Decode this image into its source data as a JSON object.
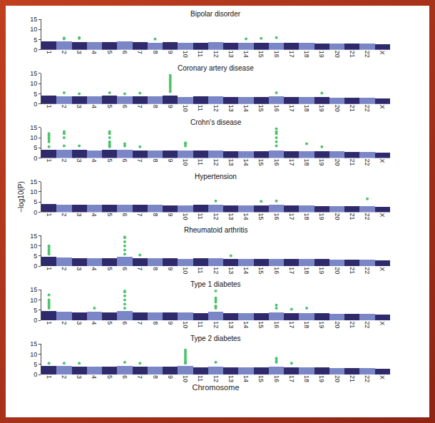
{
  "chart_data": [
    {
      "type": "bar",
      "title": "Bipolar disorder",
      "categories": [
        "1",
        "2",
        "3",
        "4",
        "5",
        "6",
        "7",
        "8",
        "9",
        "10",
        "11",
        "12",
        "13",
        "14",
        "15",
        "16",
        "17",
        "18",
        "19",
        "20",
        "21",
        "22",
        "X"
      ],
      "ylim": [
        0,
        15
      ],
      "yticks": [
        0,
        5,
        10,
        15
      ],
      "grid": false,
      "series": [
        {
          "type": "bar",
          "values": [
            4.0,
            4.2,
            3.8,
            3.7,
            3.9,
            4.0,
            3.8,
            3.6,
            3.7,
            3.5,
            3.6,
            3.7,
            3.4,
            3.5,
            3.6,
            3.6,
            3.5,
            3.3,
            3.2,
            3.2,
            3.0,
            3.0,
            2.8
          ],
          "colors": [
            "#2e2a6b",
            "#7a86c6",
            "#2e2a6b",
            "#7a86c6",
            "#2e2a6b",
            "#7a86c6",
            "#2e2a6b",
            "#7a86c6",
            "#2e2a6b",
            "#7a86c6",
            "#2e2a6b",
            "#7a86c6",
            "#2e2a6b",
            "#7a86c6",
            "#2e2a6b",
            "#7a86c6",
            "#2e2a6b",
            "#7a86c6",
            "#2e2a6b",
            "#7a86c6",
            "#2e2a6b",
            "#7a86c6",
            "#2e2a6b"
          ]
        },
        {
          "type": "scatter",
          "color": "#4cc36a",
          "x": [
            "2",
            "2",
            "3",
            "3",
            "8",
            "14",
            "15",
            "16"
          ],
          "values": [
            5.8,
            5.4,
            5.6,
            6.0,
            5.3,
            5.4,
            5.6,
            6.0
          ]
        }
      ]
    },
    {
      "type": "bar",
      "title": "Coronary artery disease",
      "categories": [
        "1",
        "2",
        "3",
        "4",
        "5",
        "6",
        "7",
        "8",
        "9",
        "10",
        "11",
        "12",
        "13",
        "14",
        "15",
        "16",
        "17",
        "18",
        "19",
        "20",
        "21",
        "22",
        "X"
      ],
      "ylim": [
        0,
        15
      ],
      "yticks": [
        0,
        5,
        10,
        15
      ],
      "grid": false,
      "series": [
        {
          "type": "bar",
          "values": [
            4.2,
            3.9,
            3.8,
            3.9,
            4.0,
            3.8,
            3.9,
            3.7,
            4.3,
            3.6,
            3.7,
            3.8,
            3.5,
            3.6,
            3.5,
            3.7,
            3.4,
            3.3,
            3.3,
            3.2,
            3.0,
            3.1,
            2.7
          ],
          "colors": [
            "#2e2a6b",
            "#7a86c6",
            "#2e2a6b",
            "#7a86c6",
            "#2e2a6b",
            "#7a86c6",
            "#2e2a6b",
            "#7a86c6",
            "#2e2a6b",
            "#7a86c6",
            "#2e2a6b",
            "#7a86c6",
            "#2e2a6b",
            "#7a86c6",
            "#2e2a6b",
            "#7a86c6",
            "#2e2a6b",
            "#7a86c6",
            "#2e2a6b",
            "#7a86c6",
            "#2e2a6b",
            "#7a86c6",
            "#2e2a6b"
          ]
        },
        {
          "type": "scatter",
          "color": "#4cc36a",
          "x": [
            "2",
            "3",
            "5",
            "6",
            "7",
            "9",
            "9",
            "9",
            "9",
            "9",
            "9",
            "9",
            "9",
            "9",
            "16",
            "19"
          ],
          "values": [
            5.5,
            5.0,
            5.5,
            5.0,
            5.3,
            6,
            7,
            8,
            9,
            10,
            11,
            12,
            13,
            14,
            5.5,
            5.3
          ]
        }
      ]
    },
    {
      "type": "bar",
      "title": "Crohn's disease",
      "categories": [
        "1",
        "2",
        "3",
        "4",
        "5",
        "6",
        "7",
        "8",
        "9",
        "10",
        "11",
        "12",
        "13",
        "14",
        "15",
        "16",
        "17",
        "18",
        "19",
        "20",
        "21",
        "22",
        "X"
      ],
      "ylim": [
        0,
        15
      ],
      "yticks": [
        0,
        5,
        10,
        15
      ],
      "grid": false,
      "series": [
        {
          "type": "bar",
          "values": [
            4.3,
            4.1,
            4.0,
            3.8,
            4.2,
            4.0,
            3.9,
            3.7,
            3.8,
            3.9,
            3.7,
            3.8,
            3.5,
            3.6,
            3.6,
            3.9,
            3.5,
            3.4,
            3.4,
            3.3,
            3.1,
            3.0,
            2.8
          ],
          "colors": [
            "#2e2a6b",
            "#7a86c6",
            "#2e2a6b",
            "#7a86c6",
            "#2e2a6b",
            "#7a86c6",
            "#2e2a6b",
            "#7a86c6",
            "#2e2a6b",
            "#7a86c6",
            "#2e2a6b",
            "#7a86c6",
            "#2e2a6b",
            "#7a86c6",
            "#2e2a6b",
            "#7a86c6",
            "#2e2a6b",
            "#7a86c6",
            "#2e2a6b",
            "#7a86c6",
            "#2e2a6b",
            "#7a86c6",
            "#2e2a6b"
          ]
        },
        {
          "type": "scatter",
          "color": "#4cc36a",
          "x": [
            "1",
            "1",
            "1",
            "1",
            "1",
            "1",
            "2",
            "2",
            "2",
            "2",
            "3",
            "5",
            "5",
            "5",
            "5",
            "5",
            "5",
            "5",
            "5",
            "6",
            "6",
            "7",
            "10",
            "10",
            "10",
            "16",
            "16",
            "16",
            "16",
            "16",
            "16",
            "18",
            "19"
          ],
          "values": [
            8,
            9,
            10,
            11,
            12,
            5.5,
            6,
            10,
            12,
            13,
            6,
            6,
            8,
            10,
            12,
            13,
            5.5,
            6.5,
            7.5,
            6,
            7,
            5.5,
            6,
            7,
            7.5,
            6,
            8,
            10,
            12,
            13,
            14.5,
            7,
            5.5
          ]
        }
      ]
    },
    {
      "type": "bar",
      "title": "Hypertension",
      "ylabel": "−log10(P)",
      "categories": [
        "1",
        "2",
        "3",
        "4",
        "5",
        "6",
        "7",
        "8",
        "9",
        "10",
        "11",
        "12",
        "13",
        "14",
        "15",
        "16",
        "17",
        "18",
        "19",
        "20",
        "21",
        "22",
        "X"
      ],
      "ylim": [
        0,
        15
      ],
      "yticks": [
        0,
        5,
        10,
        15
      ],
      "grid": false,
      "series": [
        {
          "type": "bar",
          "values": [
            4.0,
            3.9,
            3.8,
            3.7,
            3.8,
            3.9,
            3.7,
            3.8,
            3.6,
            3.6,
            3.7,
            3.9,
            3.5,
            3.5,
            3.6,
            3.7,
            3.4,
            3.3,
            3.2,
            3.2,
            3.0,
            3.1,
            2.9
          ],
          "colors": [
            "#2e2a6b",
            "#7a86c6",
            "#2e2a6b",
            "#7a86c6",
            "#2e2a6b",
            "#7a86c6",
            "#2e2a6b",
            "#7a86c6",
            "#2e2a6b",
            "#7a86c6",
            "#2e2a6b",
            "#7a86c6",
            "#2e2a6b",
            "#7a86c6",
            "#2e2a6b",
            "#7a86c6",
            "#2e2a6b",
            "#7a86c6",
            "#2e2a6b",
            "#7a86c6",
            "#2e2a6b",
            "#7a86c6",
            "#2e2a6b"
          ]
        },
        {
          "type": "scatter",
          "color": "#4cc36a",
          "x": [
            "12",
            "15",
            "16",
            "22"
          ],
          "values": [
            5.5,
            5.3,
            5.5,
            6.5
          ]
        }
      ]
    },
    {
      "type": "bar",
      "title": "Rheumatoid arthritis",
      "categories": [
        "1",
        "2",
        "3",
        "4",
        "5",
        "6",
        "7",
        "8",
        "9",
        "10",
        "11",
        "12",
        "13",
        "14",
        "15",
        "16",
        "17",
        "18",
        "19",
        "20",
        "21",
        "22",
        "X"
      ],
      "ylim": [
        0,
        15
      ],
      "yticks": [
        0,
        5,
        10,
        15
      ],
      "grid": false,
      "series": [
        {
          "type": "bar",
          "values": [
            4.4,
            4.0,
            3.9,
            3.8,
            3.9,
            4.5,
            3.8,
            3.7,
            3.7,
            3.6,
            3.7,
            3.8,
            3.5,
            3.5,
            3.5,
            3.6,
            3.4,
            3.3,
            3.3,
            3.2,
            3.0,
            3.0,
            2.8
          ],
          "colors": [
            "#2e2a6b",
            "#7a86c6",
            "#2e2a6b",
            "#7a86c6",
            "#2e2a6b",
            "#7a86c6",
            "#2e2a6b",
            "#7a86c6",
            "#2e2a6b",
            "#7a86c6",
            "#2e2a6b",
            "#7a86c6",
            "#2e2a6b",
            "#7a86c6",
            "#2e2a6b",
            "#7a86c6",
            "#2e2a6b",
            "#7a86c6",
            "#2e2a6b",
            "#7a86c6",
            "#2e2a6b",
            "#7a86c6",
            "#2e2a6b"
          ]
        },
        {
          "type": "scatter",
          "color": "#4cc36a",
          "x": [
            "1",
            "1",
            "1",
            "1",
            "1",
            "6",
            "6",
            "6",
            "6",
            "6",
            "6",
            "7",
            "13"
          ],
          "values": [
            6,
            7,
            8,
            9,
            10,
            6,
            8,
            10,
            12,
            14,
            15,
            5.5,
            5.2
          ]
        }
      ]
    },
    {
      "type": "bar",
      "title": "Type 1 diabetes",
      "categories": [
        "1",
        "2",
        "3",
        "4",
        "5",
        "6",
        "7",
        "8",
        "9",
        "10",
        "11",
        "12",
        "13",
        "14",
        "15",
        "16",
        "17",
        "18",
        "19",
        "20",
        "21",
        "22",
        "X"
      ],
      "ylim": [
        0,
        15
      ],
      "yticks": [
        0,
        5,
        10,
        15
      ],
      "grid": false,
      "series": [
        {
          "type": "bar",
          "values": [
            4.5,
            4.0,
            3.9,
            4.0,
            3.8,
            4.6,
            3.8,
            3.7,
            3.8,
            3.7,
            3.6,
            4.2,
            3.5,
            3.6,
            3.5,
            3.8,
            3.5,
            3.4,
            3.3,
            3.2,
            3.0,
            3.1,
            2.8
          ],
          "colors": [
            "#2e2a6b",
            "#7a86c6",
            "#2e2a6b",
            "#7a86c6",
            "#2e2a6b",
            "#7a86c6",
            "#2e2a6b",
            "#7a86c6",
            "#2e2a6b",
            "#7a86c6",
            "#2e2a6b",
            "#7a86c6",
            "#2e2a6b",
            "#7a86c6",
            "#2e2a6b",
            "#7a86c6",
            "#2e2a6b",
            "#7a86c6",
            "#2e2a6b",
            "#7a86c6",
            "#2e2a6b",
            "#7a86c6",
            "#2e2a6b"
          ]
        },
        {
          "type": "scatter",
          "color": "#4cc36a",
          "x": [
            "1",
            "1",
            "1",
            "1",
            "1",
            "1",
            "4",
            "6",
            "6",
            "6",
            "6",
            "6",
            "6",
            "12",
            "12",
            "12",
            "12",
            "12",
            "12",
            "12",
            "16",
            "16",
            "17",
            "18"
          ],
          "values": [
            6,
            7,
            8,
            9,
            10,
            12.5,
            6,
            6,
            8,
            10,
            12,
            14,
            15,
            7,
            9,
            10,
            11,
            6,
            7,
            14.5,
            6,
            7.5,
            5.5,
            6
          ]
        }
      ]
    },
    {
      "type": "bar",
      "title": "Type 2 diabetes",
      "xlabel": "Chromosome",
      "categories": [
        "1",
        "2",
        "3",
        "4",
        "5",
        "6",
        "7",
        "8",
        "9",
        "10",
        "11",
        "12",
        "13",
        "14",
        "15",
        "16",
        "17",
        "18",
        "19",
        "20",
        "21",
        "22",
        "X"
      ],
      "ylim": [
        0,
        15
      ],
      "yticks": [
        0,
        5,
        10,
        15
      ],
      "grid": false,
      "series": [
        {
          "type": "bar",
          "values": [
            4.1,
            4.0,
            3.9,
            3.8,
            3.8,
            4.0,
            3.9,
            3.7,
            3.7,
            4.2,
            3.6,
            3.8,
            3.5,
            3.5,
            3.6,
            3.9,
            3.5,
            3.3,
            3.3,
            3.2,
            3.0,
            3.0,
            2.8
          ],
          "colors": [
            "#2e2a6b",
            "#7a86c6",
            "#2e2a6b",
            "#7a86c6",
            "#2e2a6b",
            "#7a86c6",
            "#2e2a6b",
            "#7a86c6",
            "#2e2a6b",
            "#7a86c6",
            "#2e2a6b",
            "#7a86c6",
            "#2e2a6b",
            "#7a86c6",
            "#2e2a6b",
            "#7a86c6",
            "#2e2a6b",
            "#7a86c6",
            "#2e2a6b",
            "#7a86c6",
            "#2e2a6b",
            "#7a86c6",
            "#2e2a6b"
          ]
        },
        {
          "type": "scatter",
          "color": "#4cc36a",
          "x": [
            "1",
            "2",
            "3",
            "6",
            "7",
            "10",
            "10",
            "10",
            "10",
            "10",
            "10",
            "10",
            "10",
            "10",
            "12",
            "16",
            "16",
            "16",
            "17"
          ],
          "values": [
            5.5,
            5.5,
            5.5,
            6,
            5.5,
            6,
            7,
            8,
            9,
            10,
            11,
            12,
            5.5,
            6,
            6,
            6,
            7,
            8,
            5.5
          ]
        }
      ]
    }
  ]
}
